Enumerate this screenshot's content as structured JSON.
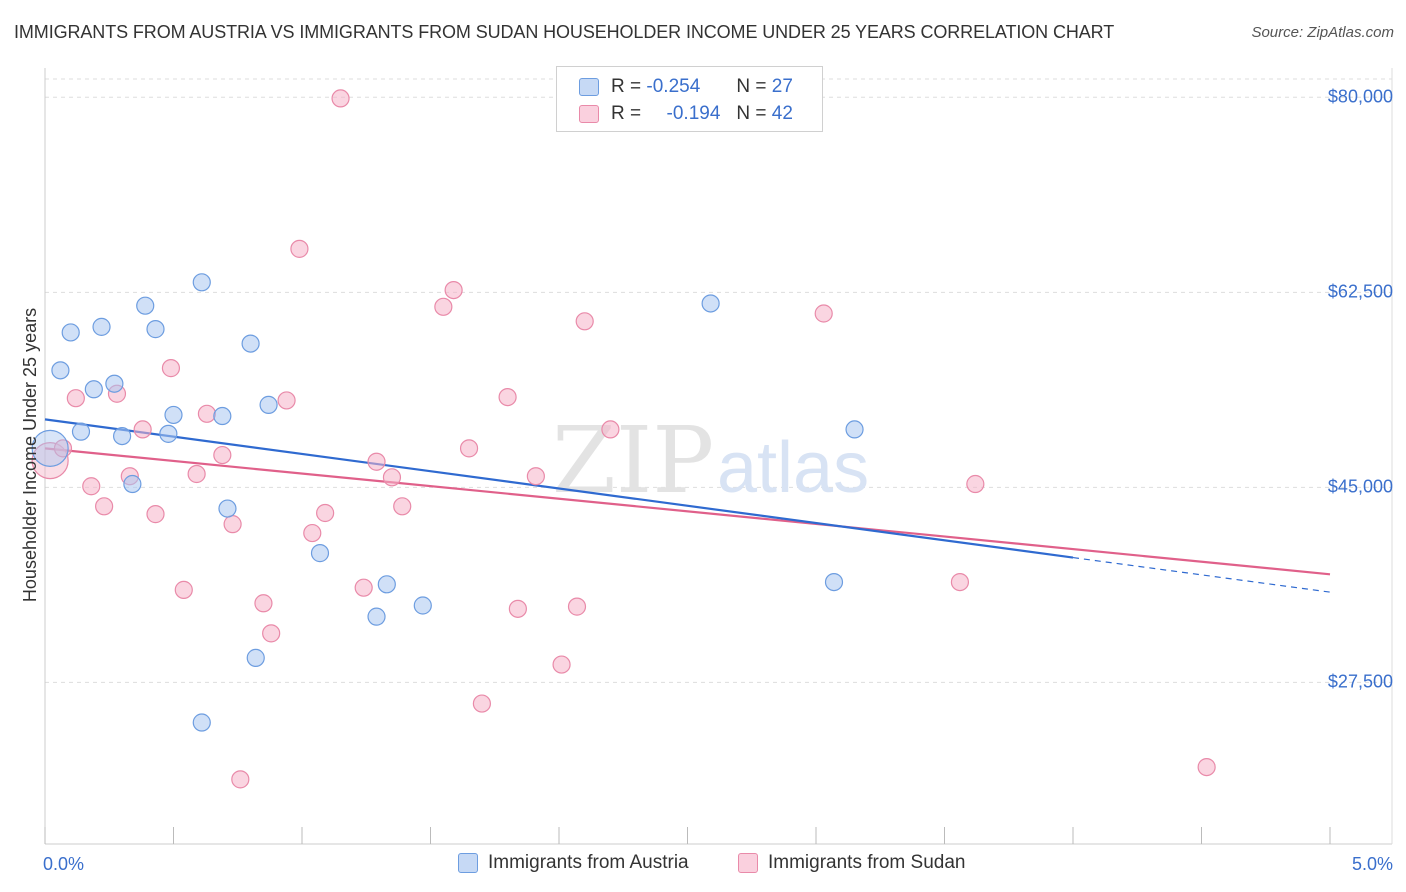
{
  "header": {
    "title": "IMMIGRANTS FROM AUSTRIA VS IMMIGRANTS FROM SUDAN HOUSEHOLDER INCOME UNDER 25 YEARS CORRELATION CHART",
    "source": "Source: ZipAtlas.com"
  },
  "watermark": {
    "zip": "ZIP",
    "atlas": "atlas"
  },
  "legend": {
    "rows": [
      {
        "r_label": "R =",
        "r_value": "-0.254",
        "n_label": "N =",
        "n_value": "27",
        "color": "#a9c6f0"
      },
      {
        "r_label": "R =",
        "r_value": "-0.194",
        "n_label": "N =",
        "n_value": "42",
        "color": "#f5b3c8"
      }
    ]
  },
  "bottom_legend": {
    "austria": "Immigrants from Austria",
    "sudan": "Immigrants from Sudan"
  },
  "colors": {
    "austria_fill": "#a9c6f0",
    "austria_stroke": "#6d9de0",
    "austria_line": "#2f6ad0",
    "sudan_fill": "#f5b3c8",
    "sudan_stroke": "#e98aa9",
    "sudan_line": "#e0608a",
    "axis_label": "#3a6fcc"
  },
  "chart_data": {
    "type": "scatter",
    "title": "IMMIGRANTS FROM AUSTRIA VS IMMIGRANTS FROM SUDAN HOUSEHOLDER INCOME UNDER 25 YEARS CORRELATION CHART",
    "xlabel": "",
    "ylabel": "Householder Income Under 25 years",
    "xlim": [
      0,
      5.0
    ],
    "ylim": [
      13000,
      82000
    ],
    "x_tick_labels": [
      "0.0%",
      "5.0%"
    ],
    "y_ticks": [
      27500,
      45000,
      62500,
      80000
    ],
    "y_tick_labels": [
      "$27,500",
      "$45,000",
      "$62,500",
      "$80,000"
    ],
    "series": [
      {
        "name": "Immigrants from Austria",
        "points": [
          {
            "x": 0.02,
            "y": 48500,
            "big": true
          },
          {
            "x": 0.06,
            "y": 55500
          },
          {
            "x": 0.1,
            "y": 58900
          },
          {
            "x": 0.14,
            "y": 50000
          },
          {
            "x": 0.19,
            "y": 53800
          },
          {
            "x": 0.22,
            "y": 59400
          },
          {
            "x": 0.27,
            "y": 54300
          },
          {
            "x": 0.3,
            "y": 49600
          },
          {
            "x": 0.34,
            "y": 45300
          },
          {
            "x": 0.39,
            "y": 61300
          },
          {
            "x": 0.43,
            "y": 59200
          },
          {
            "x": 0.48,
            "y": 49800
          },
          {
            "x": 0.5,
            "y": 51500
          },
          {
            "x": 0.61,
            "y": 63400
          },
          {
            "x": 0.61,
            "y": 23900
          },
          {
            "x": 0.69,
            "y": 51400
          },
          {
            "x": 0.71,
            "y": 43100
          },
          {
            "x": 0.8,
            "y": 57900
          },
          {
            "x": 0.82,
            "y": 29700
          },
          {
            "x": 0.87,
            "y": 52400
          },
          {
            "x": 1.07,
            "y": 39100
          },
          {
            "x": 1.29,
            "y": 33400
          },
          {
            "x": 1.33,
            "y": 36300
          },
          {
            "x": 1.47,
            "y": 34400
          },
          {
            "x": 2.59,
            "y": 61500
          },
          {
            "x": 3.07,
            "y": 36500
          },
          {
            "x": 3.15,
            "y": 50200
          }
        ],
        "trend": {
          "x0": 0.0,
          "y0": 51100,
          "x1": 4.0,
          "y1": 38700,
          "dash_to_x": 5.0,
          "dash_to_y": 35600
        }
      },
      {
        "name": "Immigrants from Sudan",
        "points": [
          {
            "x": 0.02,
            "y": 47400,
            "big": true
          },
          {
            "x": 0.07,
            "y": 48500
          },
          {
            "x": 0.12,
            "y": 53000
          },
          {
            "x": 0.18,
            "y": 45100
          },
          {
            "x": 0.23,
            "y": 43300
          },
          {
            "x": 0.28,
            "y": 53400
          },
          {
            "x": 0.33,
            "y": 46000
          },
          {
            "x": 0.38,
            "y": 50200
          },
          {
            "x": 0.43,
            "y": 42600
          },
          {
            "x": 0.49,
            "y": 55700
          },
          {
            "x": 0.54,
            "y": 35800
          },
          {
            "x": 0.59,
            "y": 46200
          },
          {
            "x": 0.63,
            "y": 51600
          },
          {
            "x": 0.69,
            "y": 47900
          },
          {
            "x": 0.73,
            "y": 41700
          },
          {
            "x": 0.76,
            "y": 18800
          },
          {
            "x": 0.85,
            "y": 34600
          },
          {
            "x": 0.88,
            "y": 31900
          },
          {
            "x": 0.94,
            "y": 52800
          },
          {
            "x": 0.99,
            "y": 66400
          },
          {
            "x": 1.04,
            "y": 40900
          },
          {
            "x": 1.09,
            "y": 42700
          },
          {
            "x": 1.15,
            "y": 79900
          },
          {
            "x": 1.24,
            "y": 36000
          },
          {
            "x": 1.29,
            "y": 47300
          },
          {
            "x": 1.35,
            "y": 45900
          },
          {
            "x": 1.39,
            "y": 43300
          },
          {
            "x": 1.55,
            "y": 61200
          },
          {
            "x": 1.59,
            "y": 62700
          },
          {
            "x": 1.65,
            "y": 48500
          },
          {
            "x": 1.7,
            "y": 25600
          },
          {
            "x": 1.8,
            "y": 53100
          },
          {
            "x": 1.84,
            "y": 34100
          },
          {
            "x": 1.91,
            "y": 46000
          },
          {
            "x": 2.01,
            "y": 29100
          },
          {
            "x": 2.07,
            "y": 34300
          },
          {
            "x": 2.1,
            "y": 59900
          },
          {
            "x": 2.2,
            "y": 50200
          },
          {
            "x": 3.03,
            "y": 60600
          },
          {
            "x": 3.56,
            "y": 36500
          },
          {
            "x": 3.62,
            "y": 45300
          },
          {
            "x": 4.52,
            "y": 19900
          }
        ],
        "trend": {
          "x0": 0.0,
          "y0": 48500,
          "x1": 5.0,
          "y1": 37200
        }
      }
    ]
  }
}
